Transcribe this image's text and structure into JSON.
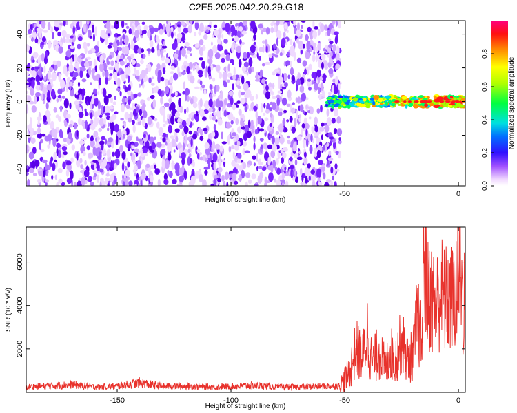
{
  "title": "C2E5.2025.042.20.29.G18",
  "colors": {
    "snr_line": "#e8322c",
    "spectrogram_noise": "#7b22ff",
    "frame": "#000000"
  },
  "chart_data": [
    {
      "type": "heatmap",
      "title": "C2E5.2025.042.20.29.G18",
      "xlabel": "Height of straight line (km)",
      "ylabel": "Frequency (Hz)",
      "xlim": [
        -190,
        3
      ],
      "ylim": [
        -50,
        48
      ],
      "x_ticks": [
        -150,
        -100,
        -50,
        0
      ],
      "y_ticks": [
        -40,
        -20,
        0,
        20,
        40
      ],
      "grid": false,
      "colorbar": {
        "label": "Normalized spectral amplitude",
        "range": [
          0,
          1
        ],
        "ticks": [
          "0.0",
          "0.2",
          "0.4",
          "0.6",
          "0.8"
        ],
        "colormap": "rainbow (white-violet at 0 to red/magenta at 1)"
      },
      "features": [
        {
          "name": "broadband noise",
          "x_range": [
            -190,
            -52
          ],
          "freq_range": [
            -50,
            48
          ],
          "amplitude": "low (0.0–0.15)"
        },
        {
          "name": "carrier tone",
          "x_range": [
            -58,
            3
          ],
          "freq_center": 0,
          "freq_halfwidth": 3,
          "amplitude": "high (0.3–1.0)"
        }
      ]
    },
    {
      "type": "line",
      "xlabel": "Height of straight line (km)",
      "ylabel": "SNR (10 * v/v)",
      "xlim": [
        -190,
        3
      ],
      "ylim": [
        0,
        7600
      ],
      "x_ticks": [
        -150,
        -100,
        -50,
        0
      ],
      "y_ticks": [
        2000,
        4000,
        6000
      ],
      "grid": false,
      "series": [
        {
          "x": [
            -190,
            -180,
            -170,
            -160,
            -150,
            -140,
            -135,
            -130,
            -120,
            -110,
            -100,
            -90,
            -80,
            -70,
            -60,
            -52,
            -48,
            -45,
            -42,
            -40,
            -38,
            -35,
            -32,
            -30,
            -28,
            -25,
            -22,
            -20,
            -18,
            -16,
            -15,
            -14,
            -12,
            -10,
            -8,
            -6,
            -4,
            -2,
            0,
            1,
            2,
            3
          ],
          "values": [
            250,
            300,
            350,
            250,
            280,
            450,
            350,
            280,
            280,
            250,
            280,
            320,
            250,
            250,
            280,
            300,
            900,
            2000,
            1600,
            2800,
            1300,
            1900,
            1100,
            1900,
            1400,
            2400,
            1400,
            1800,
            3500,
            2200,
            7200,
            4400,
            4500,
            3800,
            4700,
            4200,
            4300,
            4200,
            5300,
            5800,
            3900,
            5100
          ]
        }
      ]
    }
  ]
}
